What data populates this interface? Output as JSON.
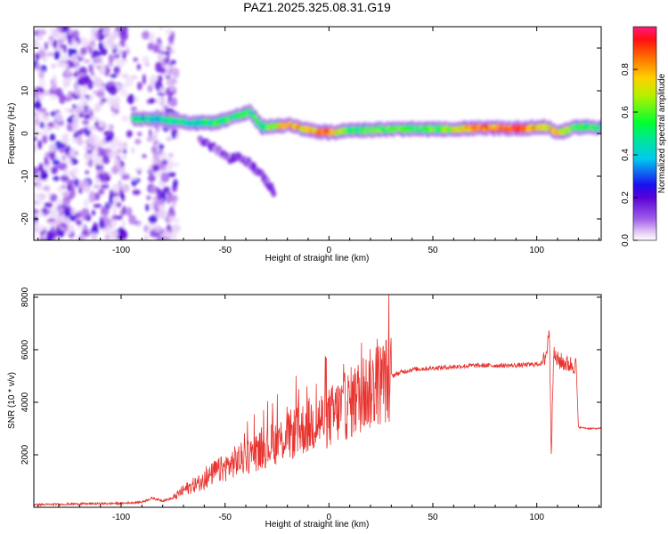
{
  "title": "PAZ1.2025.325.08.31.G19",
  "chart_data": [
    {
      "type": "heatmap",
      "title": "PAZ1.2025.325.08.31.G19",
      "xlabel": "Height of straight line (km)",
      "ylabel": "Frequency (Hz)",
      "xlim": [
        -142,
        131
      ],
      "ylim": [
        -25,
        25
      ],
      "xticks": [
        -100,
        -50,
        0,
        50,
        100
      ],
      "yticks": [
        -20,
        -10,
        0,
        10,
        20
      ],
      "colorbar": {
        "label": "Normalized spectral amplitude",
        "range": [
          0,
          1
        ],
        "ticks": [
          "0.0",
          "0.2",
          "0.4",
          "0.6",
          "0.8"
        ]
      },
      "ridge": {
        "x": [
          -94,
          -85,
          -75,
          -65,
          -55,
          -45,
          -38,
          -32,
          -20,
          -10,
          0,
          10,
          30,
          50,
          70,
          90,
          105,
          110,
          120,
          131
        ],
        "y": [
          3.5,
          3.5,
          3.0,
          2.5,
          2.5,
          4.0,
          5.0,
          1.5,
          2.0,
          0.8,
          0.2,
          0.8,
          1.0,
          1.0,
          1.2,
          1.2,
          1.5,
          0.2,
          1.5,
          1.5
        ],
        "amplitude": [
          0.45,
          0.4,
          0.5,
          0.45,
          0.5,
          0.55,
          0.55,
          0.5,
          0.8,
          0.75,
          0.85,
          0.5,
          0.6,
          0.55,
          0.8,
          0.9,
          0.7,
          0.75,
          0.55,
          0.5
        ]
      },
      "secondary_branch": {
        "x": [
          -62,
          -55,
          -48,
          -42,
          -36,
          -31,
          -26
        ],
        "y": [
          -1.5,
          -3.5,
          -6.0,
          -5.5,
          -8.0,
          -10.5,
          -14.0
        ]
      },
      "noise_region": {
        "x_range": [
          -142,
          -73
        ],
        "amplitude": "low (0.0-0.1)"
      }
    },
    {
      "type": "line",
      "title": "",
      "xlabel": "Height of straight line (km)",
      "ylabel": "SNR (10 * v/v)",
      "xlim": [
        -142,
        131
      ],
      "ylim": [
        0,
        8100
      ],
      "xticks": [
        -100,
        -50,
        0,
        50,
        100
      ],
      "yticks": [
        2000,
        4000,
        6000,
        8000
      ],
      "color": "#e8332f",
      "series": [
        {
          "x": [
            -142,
            -120,
            -100,
            -90,
            -85,
            -80,
            -75,
            -70,
            -65,
            -60,
            -55,
            -50,
            -45,
            -40,
            -35,
            -30,
            -25,
            -20,
            -15,
            -10,
            -5,
            0,
            5,
            10,
            15,
            20,
            25,
            30,
            35,
            40,
            50,
            60,
            70,
            80,
            90,
            100,
            103,
            105,
            106,
            107,
            108,
            110,
            115,
            119,
            120,
            125,
            131
          ],
          "y": [
            100,
            130,
            150,
            200,
            350,
            250,
            350,
            650,
            850,
            1000,
            1350,
            1500,
            1750,
            1900,
            2100,
            2300,
            2500,
            2700,
            2900,
            3100,
            3300,
            3400,
            3700,
            3950,
            4250,
            4500,
            4750,
            5000,
            5150,
            5250,
            5300,
            5350,
            5400,
            5400,
            5400,
            5450,
            5500,
            6000,
            7000,
            2000,
            5800,
            5600,
            5450,
            5400,
            3050,
            3000,
            3000
          ]
        }
      ]
    }
  ]
}
